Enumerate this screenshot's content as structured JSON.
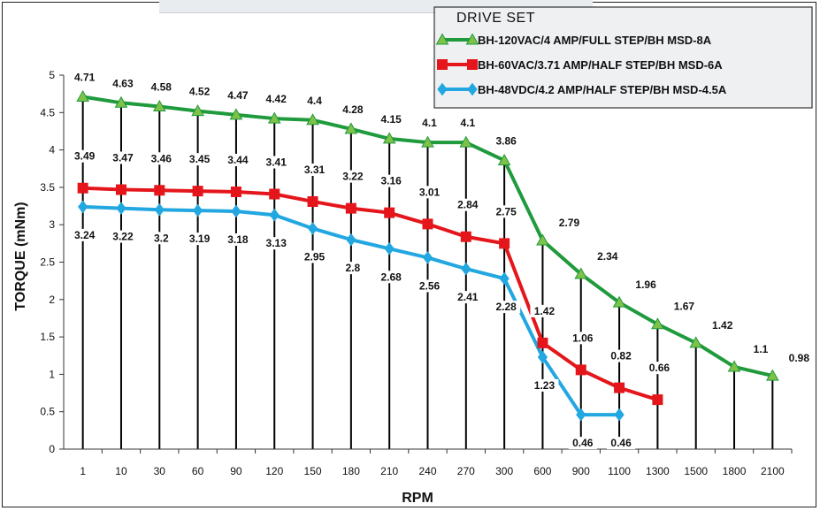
{
  "chart_data": {
    "type": "line",
    "title": "",
    "xlabel": "RPM",
    "ylabel": "TORQUE (mNm)",
    "categories": [
      "1",
      "10",
      "30",
      "60",
      "90",
      "120",
      "150",
      "180",
      "210",
      "240",
      "270",
      "300",
      "600",
      "900",
      "1100",
      "1300",
      "1500",
      "1800",
      "2100"
    ],
    "ylim": [
      0,
      5
    ],
    "yticks": [
      0,
      0.5,
      1,
      1.5,
      2,
      2.5,
      3,
      3.5,
      4,
      4.5,
      5
    ],
    "grid": "vertical drop lines from the top series to the x-axis",
    "legend": {
      "title": "DRIVE SET",
      "placement": "top-right"
    },
    "series": [
      {
        "name": "BH-120VAC/4 AMP/FULL STEP/BH MSD-8A",
        "color": "#1f9a3c",
        "marker": "triangle",
        "values": [
          4.71,
          4.63,
          4.58,
          4.52,
          4.47,
          4.42,
          4.4,
          4.28,
          4.15,
          4.1,
          4.1,
          3.86,
          2.79,
          2.34,
          1.96,
          1.67,
          1.42,
          1.1,
          0.98
        ]
      },
      {
        "name": "BH-60VAC/3.71 AMP/HALF STEP/BH MSD-6A",
        "color": "#e4161b",
        "marker": "square",
        "values": [
          3.49,
          3.47,
          3.46,
          3.45,
          3.44,
          3.41,
          3.31,
          3.22,
          3.16,
          3.01,
          2.84,
          2.75,
          1.42,
          1.06,
          0.82,
          0.66,
          null,
          null,
          null
        ]
      },
      {
        "name": "BH-48VDC/4.2 AMP/HALF STEP/BH MSD-4.5A",
        "color": "#22a7e0",
        "marker": "diamond",
        "values": [
          3.24,
          3.22,
          3.2,
          3.19,
          3.18,
          3.13,
          2.95,
          2.8,
          2.68,
          2.56,
          2.41,
          2.28,
          1.23,
          0.46,
          0.46,
          null,
          null,
          null,
          null
        ]
      }
    ]
  }
}
